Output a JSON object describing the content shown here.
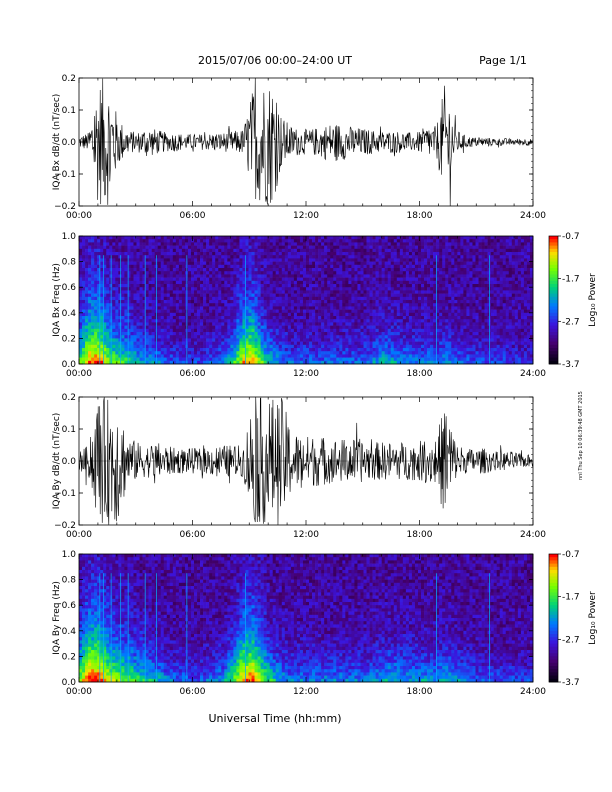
{
  "header": {
    "title": "2015/07/06  00:00–24:00 UT",
    "page": "Page 1/1"
  },
  "footer": {
    "xlabel": "Universal Time (hh:mm)",
    "side_stamp": "nnl Thu Sep 10 06:39:48 GMT 2015"
  },
  "chart_data": [
    {
      "type": "line",
      "ylabel": "IQA Bx dB/dt (nT/sec)",
      "ylim": [
        -0.2,
        0.2
      ],
      "yticks": [
        "0.2",
        "0.1",
        "0.0",
        "−0.1",
        "−0.2"
      ],
      "xticks": [
        "00:00",
        "06:00",
        "12:00",
        "18:00",
        "24:00"
      ],
      "x_range_hours": [
        0,
        24
      ],
      "series": [
        {
          "values": [
            0.02,
            0.03,
            0.2,
            0.2,
            0.08,
            0.04,
            0.03,
            0.05,
            0.04,
            0.03,
            0.03,
            0.025,
            0.025,
            0.025,
            0.03,
            0.03,
            0.035,
            0.04,
            0.17,
            0.2,
            0.2,
            0.08,
            0.05,
            0.04,
            0.04,
            0.05,
            0.06,
            0.06,
            0.05,
            0.045,
            0.04,
            0.035,
            0.035,
            0.035,
            0.03,
            0.03,
            0.05,
            0.05,
            0.2,
            0.04,
            0.02,
            0.015,
            0.015,
            0.012,
            0.012,
            0.01,
            0.012,
            0.01
          ]
        }
      ],
      "color": "#000000"
    },
    {
      "type": "heatmap",
      "ylabel": "IQA Bx Freq (Hz)",
      "ylim": [
        0.0,
        1.0
      ],
      "yticks": [
        "1.0",
        "0.8",
        "0.6",
        "0.4",
        "0.2",
        "0.0"
      ],
      "xticks": [
        "00:00",
        "06:00",
        "12:00",
        "18:00",
        "24:00"
      ],
      "colorbar": {
        "label": "Log₁₀ Power",
        "ticks": [
          "-0.7",
          "-1.7",
          "-2.7",
          "-3.7"
        ],
        "range": [
          -3.7,
          -0.7
        ]
      },
      "activity": [
        0.6,
        0.9,
        0.9,
        0.65,
        0.55,
        0.5,
        0.4,
        0.35,
        0.3,
        0.25,
        0.2,
        0.2,
        0.18,
        0.2,
        0.25,
        0.3,
        0.5,
        0.8,
        0.85,
        0.55,
        0.4,
        0.3,
        0.25,
        0.25,
        0.25,
        0.25,
        0.25,
        0.25,
        0.25,
        0.25,
        0.3,
        0.35,
        0.4,
        0.35,
        0.3,
        0.3,
        0.3,
        0.3,
        0.35,
        0.3,
        0.25,
        0.22,
        0.2,
        0.2,
        0.18,
        0.18,
        0.15,
        0.15
      ],
      "vertical_lines_hours": [
        1.1,
        1.3,
        1.7,
        2.2,
        2.6,
        3.5,
        4.1,
        5.7,
        8.8,
        18.9,
        21.7
      ]
    },
    {
      "type": "line",
      "ylabel": "IQA By dB/dt (nT/sec)",
      "ylim": [
        -0.2,
        0.2
      ],
      "yticks": [
        "0.2",
        "0.1",
        "0.0",
        "−0.1",
        "−0.2"
      ],
      "xticks": [
        "00:00",
        "06:00",
        "12:00",
        "18:00",
        "24:00"
      ],
      "x_range_hours": [
        0,
        24
      ],
      "series": [
        {
          "values": [
            0.03,
            0.05,
            0.2,
            0.2,
            0.2,
            0.08,
            0.06,
            0.05,
            0.06,
            0.05,
            0.04,
            0.04,
            0.04,
            0.04,
            0.05,
            0.05,
            0.05,
            0.05,
            0.2,
            0.2,
            0.2,
            0.2,
            0.1,
            0.08,
            0.08,
            0.08,
            0.07,
            0.07,
            0.07,
            0.07,
            0.06,
            0.06,
            0.06,
            0.06,
            0.06,
            0.06,
            0.07,
            0.08,
            0.2,
            0.06,
            0.04,
            0.04,
            0.04,
            0.03,
            0.03,
            0.03,
            0.02,
            0.02
          ]
        }
      ],
      "color": "#000000"
    },
    {
      "type": "heatmap",
      "ylabel": "IQA By Freq (Hz)",
      "ylim": [
        0.0,
        1.0
      ],
      "yticks": [
        "1.0",
        "0.8",
        "0.6",
        "0.4",
        "0.2",
        "0.0"
      ],
      "xticks": [
        "00:00",
        "06:00",
        "12:00",
        "18:00",
        "24:00"
      ],
      "colorbar": {
        "label": "Log₁₀ Power",
        "ticks": [
          "-0.7",
          "-1.7",
          "-2.7",
          "-3.7"
        ],
        "range": [
          -3.7,
          -0.7
        ]
      },
      "activity": [
        0.7,
        0.95,
        0.95,
        0.75,
        0.65,
        0.6,
        0.5,
        0.45,
        0.4,
        0.3,
        0.25,
        0.25,
        0.22,
        0.25,
        0.3,
        0.35,
        0.6,
        0.85,
        0.9,
        0.65,
        0.45,
        0.35,
        0.3,
        0.3,
        0.3,
        0.3,
        0.3,
        0.3,
        0.3,
        0.3,
        0.3,
        0.35,
        0.4,
        0.4,
        0.35,
        0.35,
        0.35,
        0.35,
        0.4,
        0.35,
        0.3,
        0.25,
        0.22,
        0.22,
        0.2,
        0.2,
        0.18,
        0.18
      ],
      "vertical_lines_hours": [
        1.1,
        1.3,
        1.7,
        2.2,
        2.6,
        3.5,
        4.1,
        5.7,
        8.8,
        18.9,
        21.7
      ]
    }
  ]
}
